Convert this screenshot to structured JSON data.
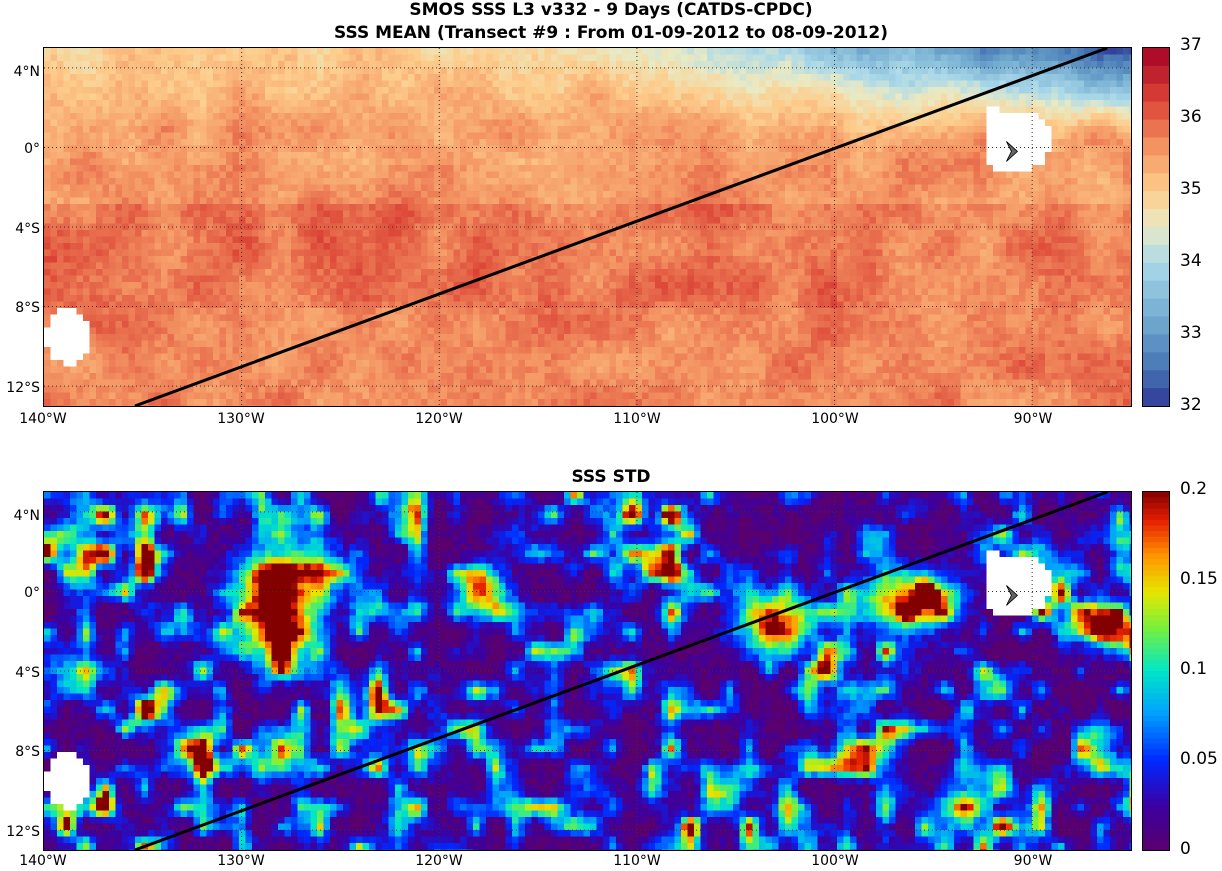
{
  "header": {
    "title_line1": "SMOS SSS L3 v332 - 9 Days (CATDS-CPDC)",
    "title_line2": "SSS MEAN (Transect #9 : From 01-09-2012 to 08-09-2012)"
  },
  "maps": [
    {
      "id": "mean",
      "title": "",
      "variable": "SSS mean",
      "colormap": "red-blue-diverging",
      "colorbar": {
        "min": 32,
        "max": 37,
        "ticks": [
          "37",
          "36",
          "35",
          "34",
          "33",
          "32"
        ]
      },
      "lon_range": [
        -140,
        -85
      ],
      "lat_range": [
        -13,
        5
      ]
    },
    {
      "id": "std",
      "title": "SSS STD",
      "variable": "SSS std",
      "colormap": "jet",
      "colorbar": {
        "min": 0,
        "max": 0.2,
        "ticks": [
          "0.2",
          "0.15",
          "0.1",
          "0.05",
          "0"
        ]
      },
      "lon_range": [
        -140,
        -85
      ],
      "lat_range": [
        -13,
        5
      ]
    }
  ],
  "axes": {
    "lat_ticks": [
      "4°N",
      "0°",
      "4°S",
      "8°S",
      "12°S"
    ],
    "lon_ticks": [
      "140°W",
      "130°W",
      "120°W",
      "110°W",
      "100°W",
      "90°W"
    ]
  },
  "transect": {
    "start": {
      "lon": -135.4,
      "lat": -13
    },
    "end": {
      "lon": -86.2,
      "lat": 5
    }
  },
  "colors": {
    "land": "#ffffff",
    "transect": "#000000",
    "grid": "#333333"
  }
}
